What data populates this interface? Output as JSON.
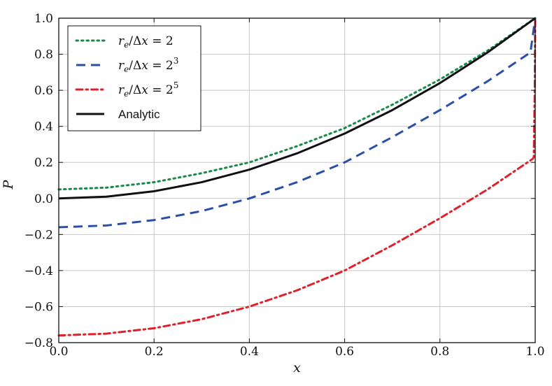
{
  "chart_data": {
    "type": "line",
    "xlabel": "x",
    "ylabel": "P",
    "xlim": [
      0.0,
      1.0
    ],
    "ylim": [
      -0.8,
      1.0
    ],
    "xticks": [
      "0.0",
      "0.2",
      "0.4",
      "0.6",
      "0.8",
      "1.0"
    ],
    "yticks": [
      "−0.8",
      "−0.6",
      "−0.4",
      "−0.2",
      "0.0",
      "0.2",
      "0.4",
      "0.6",
      "0.8",
      "1.0"
    ],
    "grid": true,
    "legend_position": "top-left",
    "series": [
      {
        "name": "r_e/Δx = 2",
        "legend_parts": {
          "r": "r",
          "sub": "e",
          "mid": "/Δ",
          "x": "x",
          "eq": " = ",
          "base": "2",
          "sup": ""
        },
        "color": "#1a8a4a",
        "style": "dotted",
        "x": [
          0.0,
          0.1,
          0.2,
          0.3,
          0.4,
          0.5,
          0.6,
          0.7,
          0.8,
          0.9,
          1.0
        ],
        "y": [
          0.05,
          0.06,
          0.09,
          0.14,
          0.2,
          0.29,
          0.39,
          0.52,
          0.66,
          0.82,
          1.0
        ]
      },
      {
        "name": "r_e/Δx = 2^3",
        "legend_parts": {
          "r": "r",
          "sub": "e",
          "mid": "/Δ",
          "x": "x",
          "eq": " = ",
          "base": "2",
          "sup": "3"
        },
        "color": "#2b4fa8",
        "style": "dashed",
        "x": [
          0.0,
          0.1,
          0.2,
          0.3,
          0.4,
          0.5,
          0.6,
          0.7,
          0.8,
          0.9,
          0.99,
          1.0
        ],
        "y": [
          -0.16,
          -0.15,
          -0.12,
          -0.07,
          0.0,
          0.09,
          0.2,
          0.34,
          0.49,
          0.65,
          0.81,
          1.0
        ]
      },
      {
        "name": "r_e/Δx = 2^5",
        "legend_parts": {
          "r": "r",
          "sub": "e",
          "mid": "/Δ",
          "x": "x",
          "eq": " = ",
          "base": "2",
          "sup": "5"
        },
        "color": "#e0202a",
        "style": "dashdot",
        "x": [
          0.0,
          0.1,
          0.2,
          0.3,
          0.4,
          0.5,
          0.6,
          0.7,
          0.8,
          0.9,
          0.995,
          0.997,
          0.999,
          1.0
        ],
        "y": [
          -0.76,
          -0.75,
          -0.72,
          -0.67,
          -0.6,
          -0.51,
          -0.4,
          -0.26,
          -0.11,
          0.05,
          0.22,
          0.23,
          0.6,
          1.0
        ]
      },
      {
        "name": "Analytic",
        "legend_parts": {
          "plain": "Analytic"
        },
        "color": "#111111",
        "style": "solid",
        "x": [
          0.0,
          0.1,
          0.2,
          0.3,
          0.4,
          0.5,
          0.6,
          0.7,
          0.8,
          0.9,
          1.0
        ],
        "y": [
          0.0,
          0.01,
          0.04,
          0.09,
          0.16,
          0.25,
          0.36,
          0.49,
          0.64,
          0.81,
          1.0
        ]
      }
    ]
  }
}
